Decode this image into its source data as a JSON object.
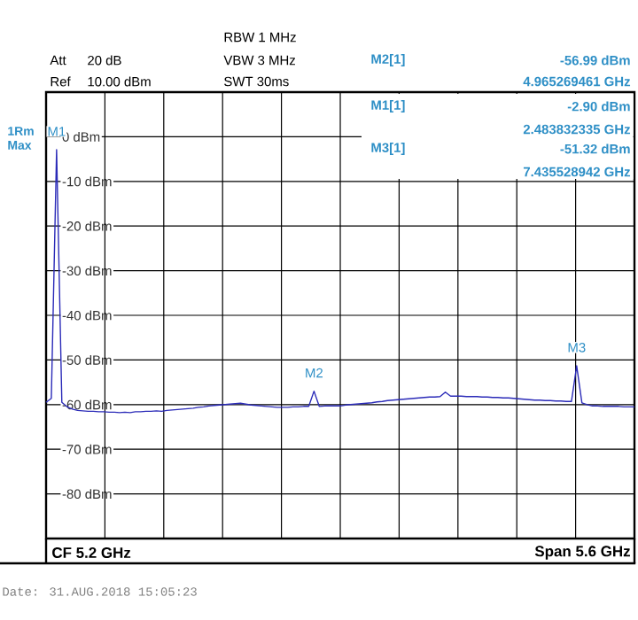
{
  "chart_data": {
    "type": "line",
    "categories": [
      null,
      null,
      null,
      null,
      null,
      null,
      null,
      null,
      null,
      null,
      null,
      null,
      null,
      null,
      null,
      null,
      null,
      null,
      null,
      null,
      null,
      null,
      null,
      null,
      null,
      null,
      null,
      null,
      null,
      null,
      null,
      null,
      null,
      null,
      null,
      null,
      null,
      null,
      null,
      null,
      null,
      null,
      null,
      null,
      null,
      null,
      null,
      null,
      null,
      null,
      null,
      null,
      null,
      null,
      null,
      null,
      null,
      null,
      null,
      null,
      null,
      null,
      null,
      null,
      null,
      null,
      null,
      null,
      null,
      null,
      null,
      null,
      null,
      null,
      null,
      null,
      null,
      null,
      null,
      null,
      null,
      null,
      null,
      null,
      null,
      null,
      null,
      null,
      null,
      null,
      null,
      null,
      null,
      null,
      null,
      null,
      null,
      null,
      null,
      null,
      null,
      null,
      null,
      null,
      null,
      null,
      null,
      null,
      null,
      null,
      null,
      null,
      null
    ],
    "series": [
      {
        "color": "#2b2bb8",
        "values": [
          -59.5,
          -58.6,
          -2.9,
          -59.5,
          -60.5,
          -61.0,
          -61.3,
          -61.4,
          -61.5,
          -61.5,
          -61.6,
          -61.6,
          -61.7,
          -61.7,
          -61.8,
          -61.7,
          -61.8,
          -61.6,
          -61.6,
          -61.5,
          -61.5,
          -61.4,
          -61.5,
          -61.3,
          -61.2,
          -61.1,
          -61.0,
          -60.9,
          -60.8,
          -60.6,
          -60.5,
          -60.3,
          -60.2,
          -60.1,
          -60.0,
          -59.9,
          -59.8,
          -59.7,
          -59.9,
          -60.1,
          -60.2,
          -60.3,
          -60.4,
          -60.5,
          -60.6,
          -60.6,
          -60.6,
          -60.5,
          -60.5,
          -60.4,
          -60.4,
          -56.99,
          -60.4,
          -60.3,
          -60.3,
          -60.3,
          -60.3,
          -60.1,
          -60.0,
          -59.9,
          -59.8,
          -59.7,
          -59.6,
          -59.4,
          -59.3,
          -59.1,
          -59.0,
          -58.9,
          -58.8,
          -58.7,
          -58.6,
          -58.5,
          -58.4,
          -58.3,
          -58.3,
          -58.2,
          -57.2,
          -58.1,
          -58.1,
          -58.1,
          -58.2,
          -58.2,
          -58.2,
          -58.3,
          -58.3,
          -58.4,
          -58.4,
          -58.5,
          -58.5,
          -58.6,
          -58.7,
          -58.8,
          -58.9,
          -59.0,
          -59.0,
          -59.1,
          -59.1,
          -59.2,
          -59.2,
          -59.3,
          -59.3,
          -51.32,
          -59.6,
          -60.0,
          -60.3,
          -60.3,
          -60.4,
          -60.4,
          -60.4,
          -60.4,
          -60.5,
          -60.5,
          -60.5
        ]
      }
    ],
    "ylim": [
      -90,
      10
    ],
    "yticks": [
      {
        "value": 0,
        "label": "0 dBm"
      },
      {
        "value": -10,
        "label": "-10 dBm"
      },
      {
        "value": -20,
        "label": "-20 dBm"
      },
      {
        "value": -30,
        "label": "-30 dBm"
      },
      {
        "value": -40,
        "label": "-40 dBm"
      },
      {
        "value": -50,
        "label": "-50 dBm"
      },
      {
        "value": -60,
        "label": "-60 dBm"
      },
      {
        "value": -70,
        "label": "-70 dBm"
      },
      {
        "value": -80,
        "label": "-80 dBm"
      }
    ],
    "grid": true,
    "tick_labels": "y",
    "annotations": [
      "Att",
      "20 dB",
      "Ref",
      "10.00 dBm",
      "RBW 1 MHz",
      "VBW 3 MHz",
      "SWT 30ms",
      "1Rm Max",
      "M2[1]",
      "-56.99 dBm",
      "4.965269461 GHz",
      "M1[1]",
      "-2.90 dBm",
      "2.483832335 GHz",
      "M3[1]",
      "-51.32 dBm",
      "7.435528942 GHz",
      "CF 5.2 GHz",
      "Span 5.6 GHz",
      "Date: 31.AUG.2018   15:05:23",
      {
        "text": "M1",
        "y": -2.9
      },
      {
        "text": "M2",
        "y": -56.99
      },
      {
        "text": "M3",
        "y": -51.32
      }
    ]
  }
}
